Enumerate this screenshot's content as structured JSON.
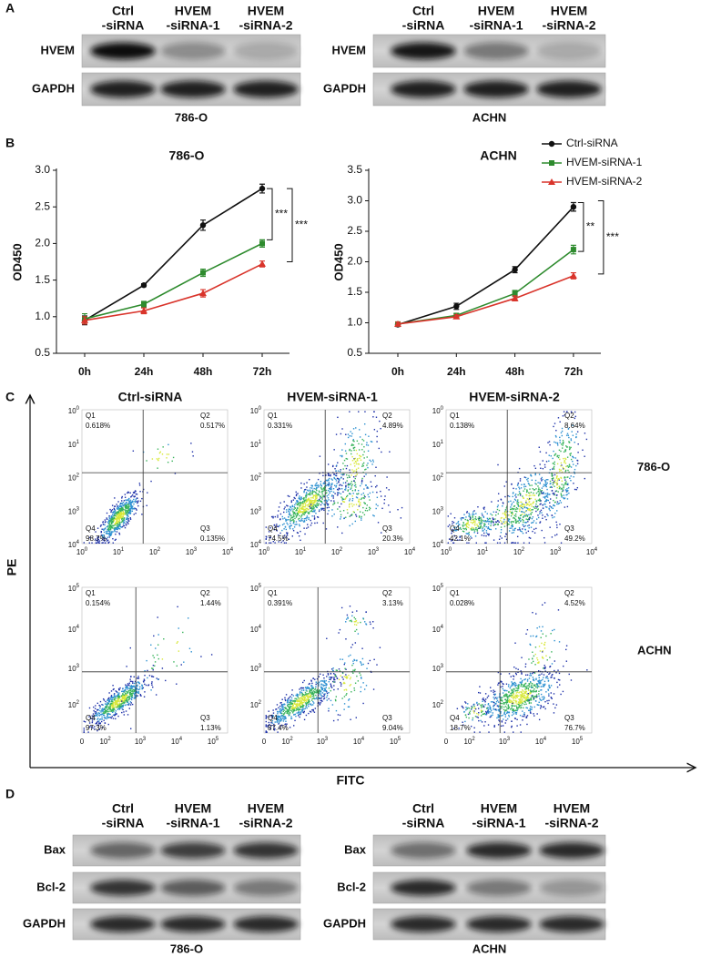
{
  "panel_a": {
    "label": "A",
    "blots": [
      {
        "lanes": [
          [
            "Ctrl",
            "-siRNA"
          ],
          [
            "HVEM",
            "-siRNA-1"
          ],
          [
            "HVEM",
            "-siRNA-2"
          ]
        ],
        "rows": [
          "HVEM",
          "GAPDH"
        ],
        "cell_line": "786-O"
      },
      {
        "lanes": [
          [
            "Ctrl",
            "-siRNA"
          ],
          [
            "HVEM",
            "-siRNA-1"
          ],
          [
            "HVEM",
            "-siRNA-2"
          ]
        ],
        "rows": [
          "HVEM",
          "GAPDH"
        ],
        "cell_line": "ACHN"
      }
    ]
  },
  "panel_b": {
    "label": "B"
  },
  "chart_data": [
    {
      "type": "line",
      "title": "786-O",
      "y_label": "OD450",
      "categories": [
        "0h",
        "24h",
        "48h",
        "72h"
      ],
      "ylim": [
        0.5,
        3.0
      ],
      "yticks": [
        0.5,
        {
          "value": 1,
          "label": "1.0"
        },
        1.5,
        {
          "value": 2,
          "label": "2.0"
        },
        2.5,
        {
          "value": 3,
          "label": "3.0"
        }
      ],
      "series": [
        {
          "color": "#111111",
          "marker": "circle",
          "values": [
            0.95,
            1.43,
            2.25,
            2.75
          ],
          "errors": [
            0.06,
            0.02,
            0.07,
            0.06
          ]
        },
        {
          "color": "#2e8b2e",
          "marker": "square",
          "values": [
            0.97,
            1.17,
            1.6,
            2.0
          ],
          "errors": [
            0.07,
            0.04,
            0.05,
            0.05
          ]
        },
        {
          "color": "#d9342b",
          "marker": "triangle",
          "values": [
            0.95,
            1.08,
            1.32,
            1.72
          ],
          "errors": [
            0.05,
            0.04,
            0.05,
            0.04
          ]
        }
      ],
      "annotations": [
        {
          "text": "***",
          "range": [
            2.75,
            2.05
          ]
        },
        {
          "text": "***",
          "range": [
            2.75,
            1.75
          ]
        }
      ]
    },
    {
      "type": "line",
      "title": "ACHN",
      "y_label": "OD450",
      "categories": [
        "0h",
        "24h",
        "48h",
        "72h"
      ],
      "ylim": [
        0.5,
        3.5
      ],
      "yticks": [
        0.5,
        {
          "value": 1,
          "label": "1.0"
        },
        1.5,
        {
          "value": 2,
          "label": "2.0"
        },
        2.5,
        {
          "value": 3,
          "label": "3.0"
        },
        3.5
      ],
      "legend": "upper right",
      "series": [
        {
          "name": "Ctrl-siRNA",
          "color": "#111111",
          "marker": "circle",
          "values": [
            0.97,
            1.27,
            1.87,
            2.9
          ],
          "errors": [
            0.03,
            0.05,
            0.05,
            0.07
          ]
        },
        {
          "name": "HVEM-siRNA-1",
          "color": "#2e8b2e",
          "marker": "square",
          "values": [
            0.98,
            1.12,
            1.48,
            2.2
          ],
          "errors": [
            0.03,
            0.03,
            0.05,
            0.07
          ]
        },
        {
          "name": "HVEM-siRNA-2",
          "color": "#d9342b",
          "marker": "triangle",
          "values": [
            0.98,
            1.1,
            1.4,
            1.77
          ],
          "errors": [
            0.03,
            0.03,
            0.04,
            0.05
          ]
        }
      ],
      "annotations": [
        {
          "text": "**",
          "range": [
            2.97,
            2.17
          ]
        },
        {
          "text": "***",
          "range": [
            3.0,
            1.8
          ]
        }
      ]
    }
  ],
  "panel_c": {
    "label": "C",
    "y_label": "PE",
    "x_label": "FITC",
    "columns": [
      "Ctrl-siRNA",
      "HVEM-siRNA-1",
      "HVEM-siRNA-2"
    ],
    "rows": [
      {
        "cell_line": "786-O",
        "xticks": [
          {
            "base": "10",
            "exp": 0
          },
          {
            "base": "10",
            "exp": 1
          },
          {
            "base": "10",
            "exp": 2
          },
          {
            "base": "10",
            "exp": 3
          },
          {
            "base": "10",
            "exp": 4
          }
        ],
        "yticks": [
          {
            "base": "10",
            "exp": 0
          },
          {
            "base": "10",
            "exp": 1
          },
          {
            "base": "10",
            "exp": 2
          },
          {
            "base": "10",
            "exp": 3
          },
          {
            "base": "10",
            "exp": 4
          }
        ],
        "plots": [
          [
            [
              "Q1",
              "0.618%"
            ],
            [
              "Q2",
              "0.517%"
            ],
            [
              "Q3",
              "0.135%"
            ],
            [
              "Q4",
              "98.7%"
            ]
          ],
          [
            [
              "Q1",
              "0.331%"
            ],
            [
              "Q2",
              "4.89%"
            ],
            [
              "Q3",
              "20.3%"
            ],
            [
              "Q4",
              "74.5%"
            ]
          ],
          [
            [
              "Q1",
              "0.138%"
            ],
            [
              "Q2",
              "8.64%"
            ],
            [
              "Q3",
              "49.2%"
            ],
            [
              "Q4",
              "42.1%"
            ]
          ]
        ]
      },
      {
        "cell_line": "ACHN",
        "xticks": [
          {
            "text": "0"
          },
          {
            "base": "10",
            "exp": 2
          },
          {
            "base": "10",
            "exp": 3
          },
          {
            "base": "10",
            "exp": 4
          },
          {
            "base": "10",
            "exp": 5
          }
        ],
        "yticks": [
          {
            "base": "10",
            "exp": 2
          },
          {
            "base": "10",
            "exp": 3
          },
          {
            "base": "10",
            "exp": 4
          },
          {
            "base": "10",
            "exp": 5
          }
        ],
        "plots": [
          [
            [
              "Q1",
              "0.154%"
            ],
            [
              "Q2",
              "1.44%"
            ],
            [
              "Q3",
              "1.13%"
            ],
            [
              "Q4",
              "97.3%"
            ]
          ],
          [
            [
              "Q1",
              "0.391%"
            ],
            [
              "Q2",
              "3.13%"
            ],
            [
              "Q3",
              "9.04%"
            ],
            [
              "Q4",
              "87.4%"
            ]
          ],
          [
            [
              "Q1",
              "0.028%"
            ],
            [
              "Q2",
              "4.52%"
            ],
            [
              "Q3",
              "76.7%"
            ],
            [
              "Q4",
              "18.7%"
            ]
          ]
        ]
      }
    ]
  },
  "panel_d": {
    "label": "D",
    "blots": [
      {
        "lanes": [
          [
            "Ctrl",
            "-siRNA"
          ],
          [
            "HVEM",
            "-siRNA-1"
          ],
          [
            "HVEM",
            "-siRNA-2"
          ]
        ],
        "rows": [
          "Bax",
          "Bcl-2",
          "GAPDH"
        ],
        "cell_line": "786-O"
      },
      {
        "lanes": [
          [
            "Ctrl",
            "-siRNA"
          ],
          [
            "HVEM",
            "-siRNA-1"
          ],
          [
            "HVEM",
            "-siRNA-2"
          ]
        ],
        "rows": [
          "Bax",
          "Bcl-2",
          "GAPDH"
        ],
        "cell_line": "ACHN"
      }
    ]
  }
}
